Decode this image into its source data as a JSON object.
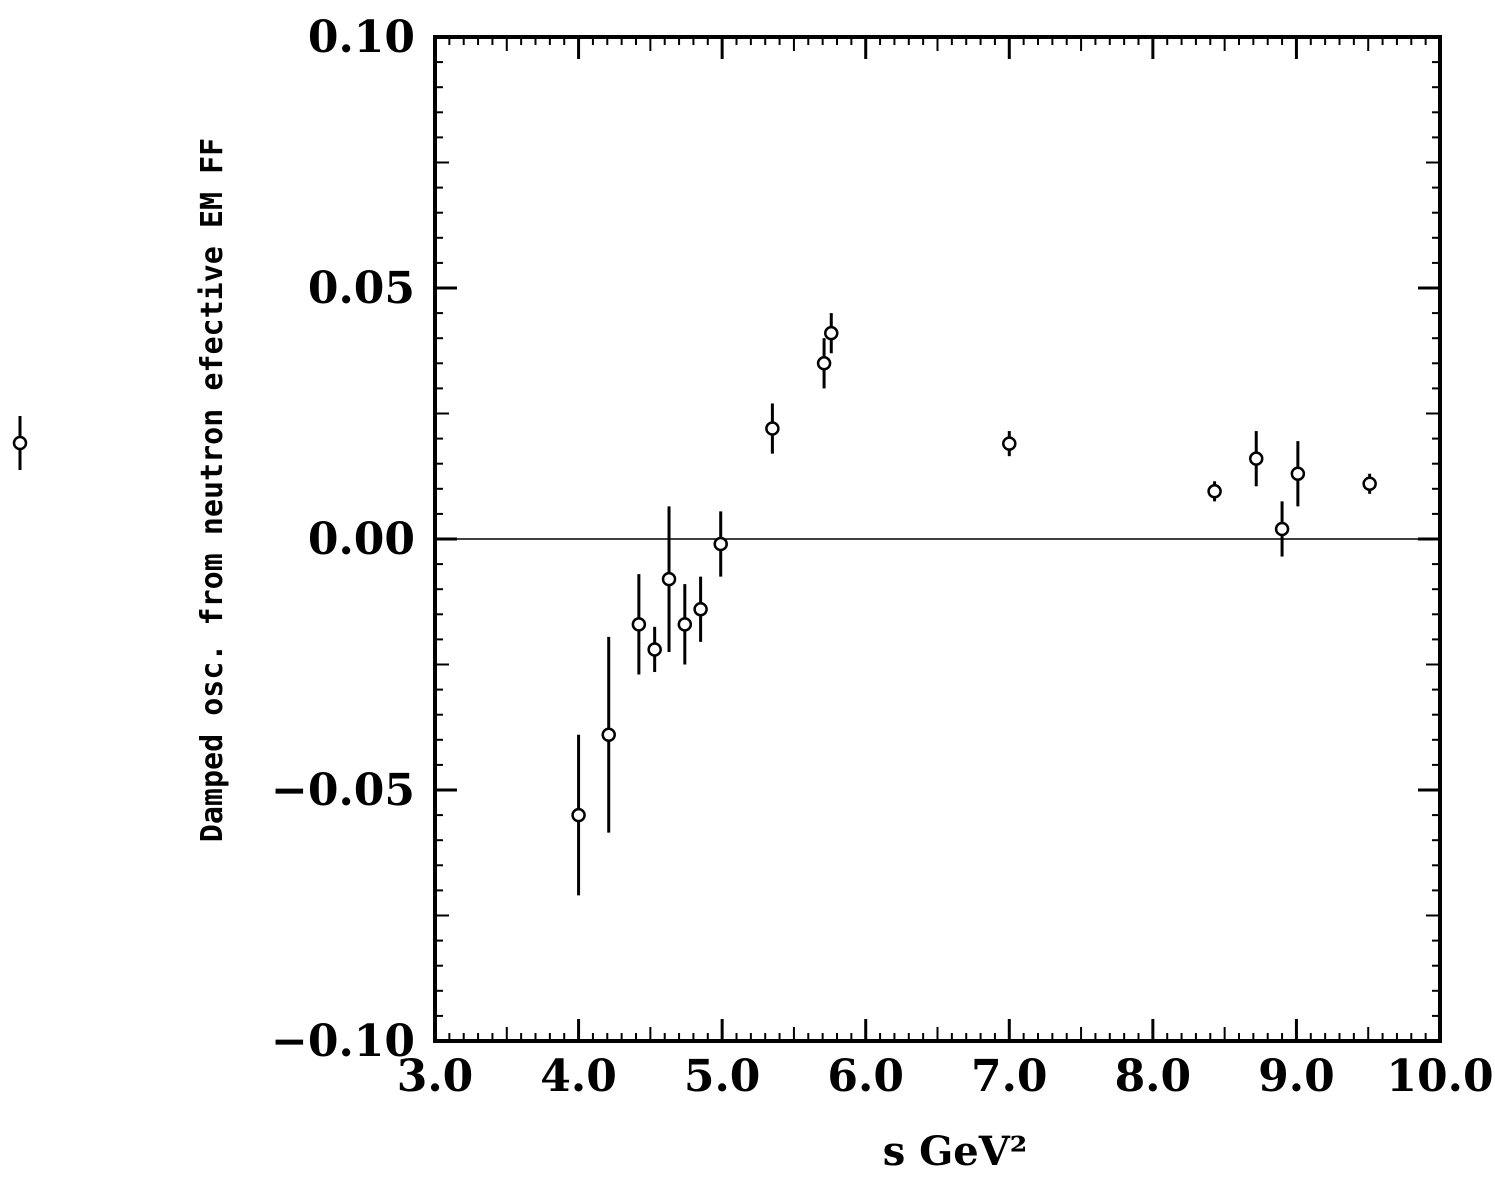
{
  "chart_data": {
    "type": "scatter",
    "xlabel": "s   GeV²",
    "ylabel": "Damped osc. from neutron efective EM FF",
    "xlim": [
      3.0,
      10.0
    ],
    "ylim": [
      -0.1,
      0.1
    ],
    "x_ticks": [
      "3.0",
      "4.0",
      "5.0",
      "6.0",
      "7.0",
      "8.0",
      "9.0",
      "10.0"
    ],
    "y_ticks": [
      "−0.10",
      "−0.05",
      "0.00",
      "0.05",
      "0.10"
    ],
    "reference_line_y": 0.0,
    "legend_marker": true,
    "points": [
      {
        "x": 4.0,
        "y": -0.055,
        "err": 0.016
      },
      {
        "x": 4.21,
        "y": -0.039,
        "err": 0.0195
      },
      {
        "x": 4.42,
        "y": -0.017,
        "err": 0.01
      },
      {
        "x": 4.53,
        "y": -0.022,
        "err": 0.0045
      },
      {
        "x": 4.63,
        "y": -0.008,
        "err": 0.0145
      },
      {
        "x": 4.74,
        "y": -0.017,
        "err": 0.008
      },
      {
        "x": 4.85,
        "y": -0.014,
        "err": 0.0065
      },
      {
        "x": 4.99,
        "y": -0.001,
        "err": 0.0065
      },
      {
        "x": 5.35,
        "y": 0.022,
        "err": 0.005
      },
      {
        "x": 5.71,
        "y": 0.035,
        "err": 0.005
      },
      {
        "x": 5.76,
        "y": 0.041,
        "err": 0.004
      },
      {
        "x": 7.0,
        "y": 0.019,
        "err": 0.0025
      },
      {
        "x": 8.43,
        "y": 0.0095,
        "err": 0.002
      },
      {
        "x": 8.72,
        "y": 0.016,
        "err": 0.0055
      },
      {
        "x": 8.9,
        "y": 0.002,
        "err": 0.0055
      },
      {
        "x": 9.01,
        "y": 0.013,
        "err": 0.0065
      },
      {
        "x": 9.51,
        "y": 0.011,
        "err": 0.002
      }
    ]
  }
}
